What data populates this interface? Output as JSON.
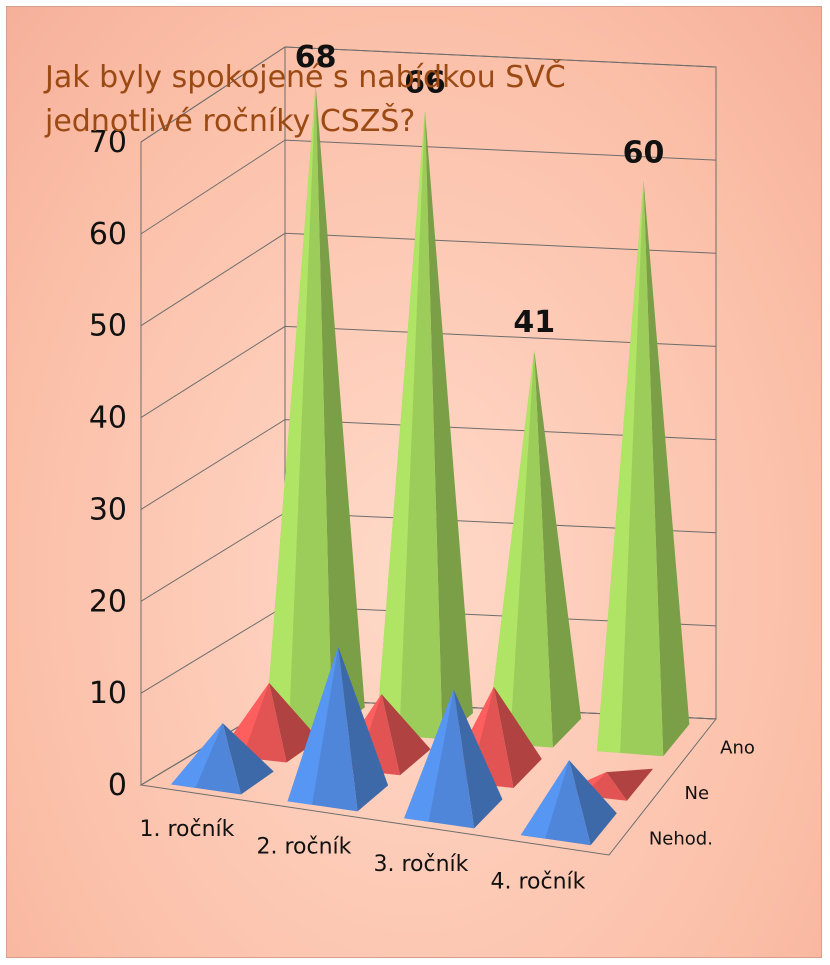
{
  "chart_data": {
    "type": "bar",
    "subtype": "3d-cone",
    "title": "Jak byly spokojené s nabídkou SVČ jednotlivé ročníky CSZŠ?",
    "categories": [
      "1. ročník",
      "2. ročník",
      "3. ročník",
      "4. ročník"
    ],
    "series": [
      {
        "name": "Nehod.",
        "values": [
          6,
          16,
          13,
          7
        ],
        "color": "#4f86d9"
      },
      {
        "name": "Ne",
        "values": [
          7,
          7,
          9,
          1
        ],
        "color": "#e25454"
      },
      {
        "name": "Ano",
        "values": [
          68,
          66,
          41,
          60
        ],
        "color": "#9ccc5a",
        "show_labels": true
      }
    ],
    "yticks": [
      0,
      10,
      20,
      30,
      40,
      50,
      60,
      70
    ],
    "ylim": [
      0,
      70
    ],
    "grid": true,
    "legend": "none"
  }
}
